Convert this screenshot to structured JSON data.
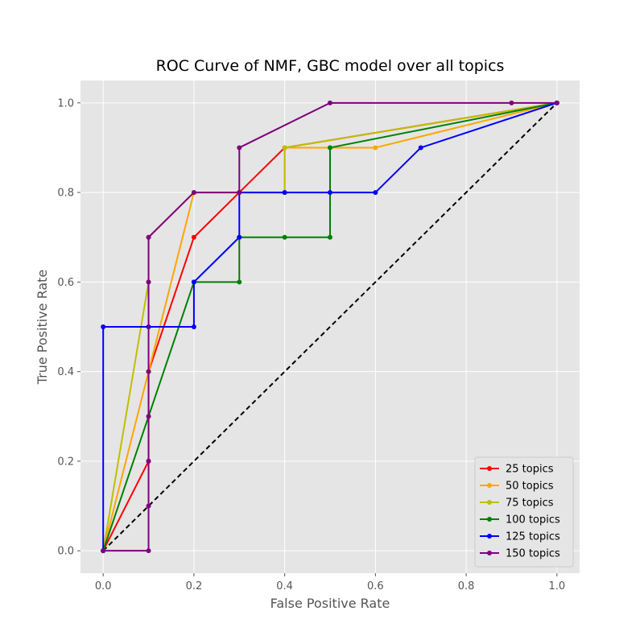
{
  "chart_data": {
    "type": "line",
    "title": "ROC Curve of NMF, GBC model over all topics",
    "xlabel": "False Positive Rate",
    "ylabel": "True Positive Rate",
    "xlim": [
      -0.05,
      1.05
    ],
    "ylim": [
      -0.05,
      1.05
    ],
    "xticks": [
      0.0,
      0.2,
      0.4,
      0.6,
      0.8,
      1.0
    ],
    "yticks": [
      0.0,
      0.2,
      0.4,
      0.6,
      0.8,
      1.0
    ],
    "xtick_labels": [
      "0.0",
      "0.2",
      "0.4",
      "0.6",
      "0.8",
      "1.0"
    ],
    "ytick_labels": [
      "0.0",
      "0.2",
      "0.4",
      "0.6",
      "0.8",
      "1.0"
    ],
    "grid": true,
    "legend_position": "bottom-right",
    "background": "#e5e5e5",
    "series": [
      {
        "name": "25 topics",
        "color": "#ff0000",
        "markers": true,
        "x": [
          0.0,
          0.1,
          0.1,
          0.2,
          0.3,
          0.4,
          1.0
        ],
        "y": [
          0.0,
          0.2,
          0.4,
          0.7,
          0.8,
          0.9,
          1.0
        ]
      },
      {
        "name": "50 topics",
        "color": "#ffa500",
        "markers": true,
        "x": [
          0.0,
          0.1,
          0.2,
          0.3,
          0.4,
          0.4,
          0.5,
          0.6,
          1.0
        ],
        "y": [
          0.0,
          0.4,
          0.8,
          0.8,
          0.8,
          0.9,
          0.9,
          0.9,
          1.0
        ]
      },
      {
        "name": "75 topics",
        "color": "#bfbf00",
        "markers": true,
        "x": [
          0.0,
          0.1,
          0.1,
          0.2,
          0.3,
          0.4,
          0.4,
          1.0
        ],
        "y": [
          0.0,
          0.6,
          0.7,
          0.8,
          0.8,
          0.8,
          0.9,
          1.0
        ]
      },
      {
        "name": "100 topics",
        "color": "#008000",
        "markers": true,
        "x": [
          0.0,
          0.2,
          0.3,
          0.3,
          0.4,
          0.5,
          0.5,
          1.0
        ],
        "y": [
          0.0,
          0.6,
          0.6,
          0.7,
          0.7,
          0.7,
          0.9,
          1.0
        ]
      },
      {
        "name": "125 topics",
        "color": "#0000ff",
        "markers": true,
        "x": [
          0.0,
          0.0,
          0.1,
          0.2,
          0.2,
          0.3,
          0.3,
          0.4,
          0.5,
          0.6,
          0.7,
          1.0
        ],
        "y": [
          0.0,
          0.5,
          0.5,
          0.5,
          0.6,
          0.7,
          0.8,
          0.8,
          0.8,
          0.8,
          0.9,
          1.0
        ]
      },
      {
        "name": "150 topics",
        "color": "#800080",
        "markers": true,
        "x": [
          0.0,
          0.1,
          0.1,
          0.1,
          0.1,
          0.1,
          0.1,
          0.1,
          0.2,
          0.3,
          0.3,
          0.5,
          0.9,
          1.0
        ],
        "y": [
          0.0,
          0.0,
          0.1,
          0.2,
          0.3,
          0.4,
          0.6,
          0.7,
          0.8,
          0.8,
          0.9,
          1.0,
          1.0,
          1.0
        ]
      }
    ],
    "reference_line": {
      "x": [
        0.0,
        1.0
      ],
      "y": [
        0.0,
        1.0
      ],
      "color": "#000000",
      "style": "dashed"
    }
  }
}
